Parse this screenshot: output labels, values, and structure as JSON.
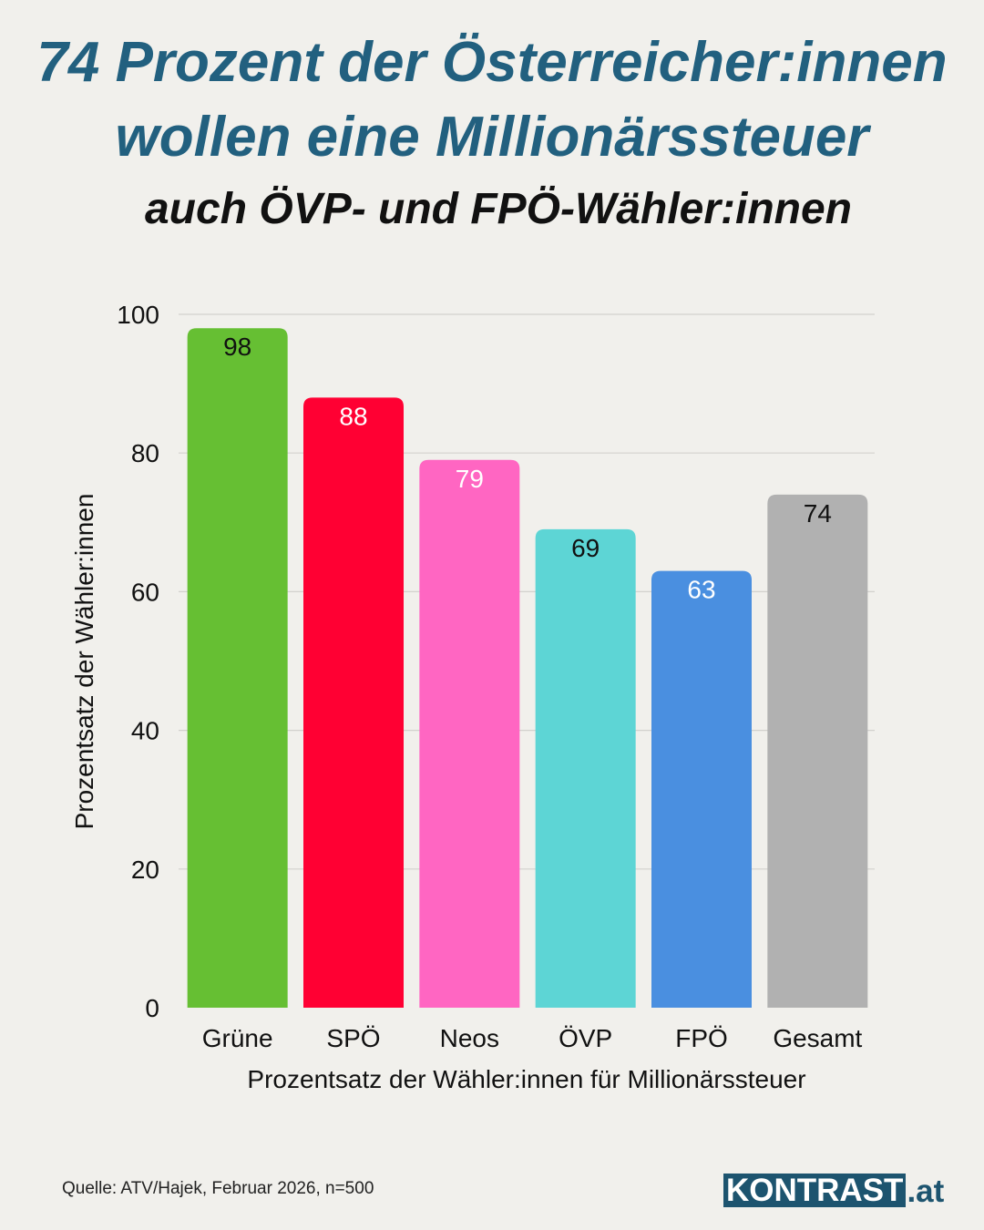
{
  "header": {
    "title_line1": "74 Prozent der Österreicher:innen",
    "title_line2": "wollen eine Millionärssteuer",
    "subtitle": "auch ÖVP- und FPÖ-Wähler:innen"
  },
  "colors": {
    "title": "#22607f",
    "background": "#f1f0ec",
    "brand": "#1d546f"
  },
  "chart_data": {
    "type": "bar",
    "title": "74 Prozent der Österreicher:innen wollen eine Millionärssteuer",
    "subtitle": "auch ÖVP- und FPÖ-Wähler:innen",
    "categories": [
      "Grüne",
      "SPÖ",
      "Neos",
      "ÖVP",
      "FPÖ",
      "Gesamt"
    ],
    "values": [
      98,
      88,
      79,
      69,
      63,
      74
    ],
    "bar_colors": [
      "#66bf33",
      "#ff0033",
      "#ff66c2",
      "#5dd5d5",
      "#4a8fe0",
      "#b1b1b1"
    ],
    "label_colors": [
      "#111111",
      "#ffffff",
      "#ffffff",
      "#111111",
      "#ffffff",
      "#111111"
    ],
    "xlabel": "Prozentsatz der Wähler:innen für Millionärssteuer",
    "ylabel": "Prozentsatz der Wähler:innen",
    "ylim": [
      0,
      100
    ],
    "yticks": [
      0,
      20,
      40,
      60,
      80,
      100
    ],
    "grid": true,
    "legend": "none"
  },
  "footer": {
    "source": "Quelle: ATV/Hajek, Februar 2026, n=500",
    "logo_main": "KONTRAST",
    "logo_tld": ".at"
  }
}
